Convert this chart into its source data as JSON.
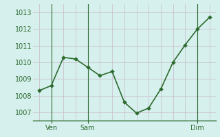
{
  "x": [
    0,
    1,
    2,
    3,
    4,
    5,
    6,
    7,
    8,
    9,
    10,
    11,
    12,
    13,
    14
  ],
  "y": [
    1008.3,
    1008.6,
    1010.3,
    1010.2,
    1009.7,
    1009.2,
    1009.45,
    1007.6,
    1006.95,
    1007.25,
    1008.4,
    1010.0,
    1011.05,
    1012.0,
    1012.7
  ],
  "line_color": "#2d6a2d",
  "marker_color": "#2d6a2d",
  "bg_color": "#d6f0ee",
  "grid_color_h": "#c8b8c8",
  "grid_color_v": "#c8b8c8",
  "axis_color": "#2d6a2d",
  "tick_label_color": "#2d6a2d",
  "ylim": [
    1006.5,
    1013.5
  ],
  "yticks": [
    1007,
    1008,
    1009,
    1010,
    1011,
    1012,
    1013
  ],
  "xtick_positions": [
    1,
    4,
    13
  ],
  "xtick_labels": [
    "Ven",
    "Sam",
    "Dim"
  ],
  "vline_positions": [
    1,
    4,
    13
  ],
  "tick_fontsize": 7,
  "minor_xtick_positions": [
    0,
    1,
    2,
    3,
    4,
    5,
    6,
    7,
    8,
    9,
    10,
    11,
    12,
    13,
    14
  ]
}
